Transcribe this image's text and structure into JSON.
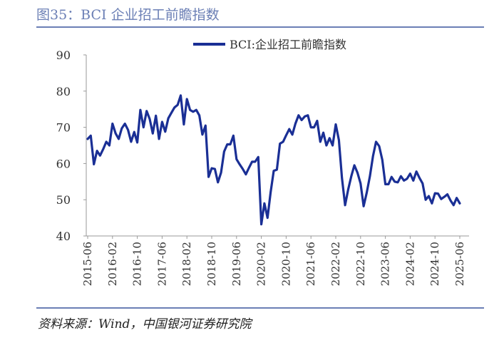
{
  "figure": {
    "title": "图35：BCI 企业招工前瞻指数",
    "source": "资料来源：Wind，中国银河证券研究院"
  },
  "colors": {
    "accent": "#6b7fb5",
    "series": "#1a2f95",
    "axis": "#999999",
    "text": "#333333"
  },
  "chart_data": {
    "type": "line",
    "title": "",
    "xlabel": "",
    "ylabel": "",
    "ylim": [
      40,
      90
    ],
    "yticks": [
      40,
      50,
      60,
      70,
      80,
      90
    ],
    "grid": false,
    "legend_position": "top-right",
    "x_tick_labels": [
      "2015-06",
      "2016-02",
      "2016-10",
      "2017-06",
      "2018-02",
      "2018-10",
      "2019-06",
      "2020-02",
      "2020-10",
      "2021-06",
      "2022-02",
      "2022-10",
      "2023-06",
      "2024-02",
      "2024-10",
      "2025-06"
    ],
    "series": [
      {
        "name": "BCI:企业招工前瞻指数",
        "color": "#1a2f95",
        "x": [
          "2015-06",
          "2015-07",
          "2015-08",
          "2015-09",
          "2015-10",
          "2015-11",
          "2015-12",
          "2016-01",
          "2016-02",
          "2016-03",
          "2016-04",
          "2016-05",
          "2016-06",
          "2016-07",
          "2016-08",
          "2016-09",
          "2016-10",
          "2016-11",
          "2016-12",
          "2017-01",
          "2017-02",
          "2017-03",
          "2017-04",
          "2017-05",
          "2017-06",
          "2017-07",
          "2017-08",
          "2017-09",
          "2017-10",
          "2017-11",
          "2017-12",
          "2018-01",
          "2018-02",
          "2018-03",
          "2018-04",
          "2018-05",
          "2018-06",
          "2018-07",
          "2018-08",
          "2018-09",
          "2018-10",
          "2018-11",
          "2018-12",
          "2019-01",
          "2019-02",
          "2019-03",
          "2019-04",
          "2019-05",
          "2019-06",
          "2019-07",
          "2019-08",
          "2019-09",
          "2019-10",
          "2019-11",
          "2019-12",
          "2020-01",
          "2020-02",
          "2020-03",
          "2020-04",
          "2020-05",
          "2020-06",
          "2020-07",
          "2020-08",
          "2020-09",
          "2020-10",
          "2020-11",
          "2020-12",
          "2021-01",
          "2021-02",
          "2021-03",
          "2021-04",
          "2021-05",
          "2021-06",
          "2021-07",
          "2021-08",
          "2021-09",
          "2021-10",
          "2021-11",
          "2021-12",
          "2022-01",
          "2022-02",
          "2022-03",
          "2022-04",
          "2022-05",
          "2022-06",
          "2022-07",
          "2022-08",
          "2022-09",
          "2022-10",
          "2022-11",
          "2022-12",
          "2023-01",
          "2023-02",
          "2023-03",
          "2023-04",
          "2023-05",
          "2023-06",
          "2023-07",
          "2023-08",
          "2023-09",
          "2023-10",
          "2023-11",
          "2023-12",
          "2024-01",
          "2024-02",
          "2024-03",
          "2024-04",
          "2024-05",
          "2024-06",
          "2024-07",
          "2024-08",
          "2024-09",
          "2024-10",
          "2024-11",
          "2024-12",
          "2025-01",
          "2025-02",
          "2025-03",
          "2025-04",
          "2025-05",
          "2025-06"
        ],
        "values": [
          66.8,
          67.7,
          59.8,
          63.5,
          62.2,
          64.0,
          66.0,
          65.0,
          71.0,
          68.3,
          66.8,
          69.7,
          71.0,
          69.3,
          66.0,
          68.7,
          65.8,
          74.8,
          70.0,
          74.5,
          72.3,
          68.3,
          73.2,
          66.8,
          71.5,
          68.8,
          72.5,
          74.0,
          75.5,
          76.2,
          78.8,
          70.8,
          77.8,
          74.8,
          74.3,
          74.8,
          73.3,
          68.0,
          70.5,
          56.3,
          58.7,
          58.5,
          54.8,
          57.5,
          63.3,
          65.3,
          65.3,
          67.7,
          61.2,
          59.8,
          58.5,
          57.0,
          58.8,
          60.5,
          60.5,
          61.8,
          43.2,
          49.0,
          45.0,
          52.0,
          58.0,
          58.3,
          65.5,
          66.0,
          67.8,
          69.5,
          68.0,
          71.0,
          73.3,
          72.0,
          73.0,
          73.3,
          70.0,
          70.0,
          71.8,
          66.0,
          68.5,
          65.0,
          67.0,
          65.0,
          70.8,
          66.5,
          56.0,
          48.5,
          52.8,
          56.5,
          59.5,
          57.5,
          54.5,
          48.2,
          52.0,
          56.5,
          62.0,
          66.0,
          64.8,
          61.0,
          54.3,
          54.3,
          56.3,
          55.0,
          54.8,
          56.5,
          55.3,
          55.8,
          57.2,
          55.3,
          57.8,
          56.0,
          54.5,
          50.0,
          51.0,
          49.0,
          51.8,
          51.7,
          50.2,
          50.8,
          51.5,
          49.8,
          48.5,
          50.5,
          49.0
        ]
      }
    ]
  }
}
